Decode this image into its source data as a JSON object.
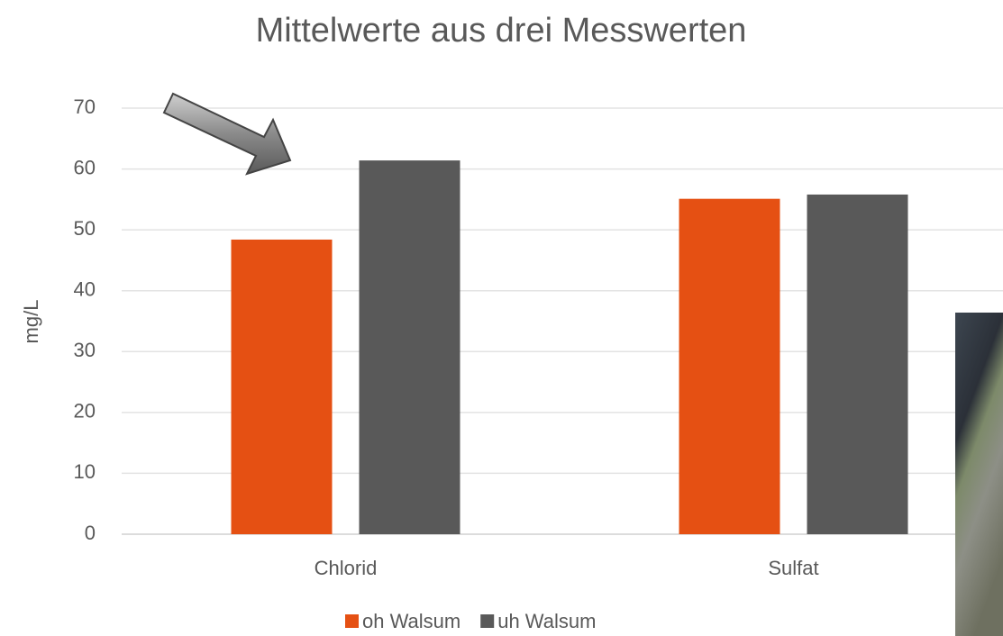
{
  "chart_data": {
    "type": "bar",
    "title": "Mittelwerte aus drei Messwerten",
    "y_label": "mg/L",
    "categories": [
      "Chlorid",
      "Sulfat"
    ],
    "series": [
      {
        "name": "oh Walsum",
        "color": "#e55013",
        "values": [
          48.4,
          55.1
        ]
      },
      {
        "name": "uh Walsum",
        "color": "#595959",
        "values": [
          61.4,
          55.8
        ]
      }
    ],
    "ylim": [
      0,
      70
    ],
    "yticks": [
      0,
      10,
      20,
      30,
      40,
      50,
      60,
      70
    ],
    "grid": true,
    "legend": "bottom"
  }
}
